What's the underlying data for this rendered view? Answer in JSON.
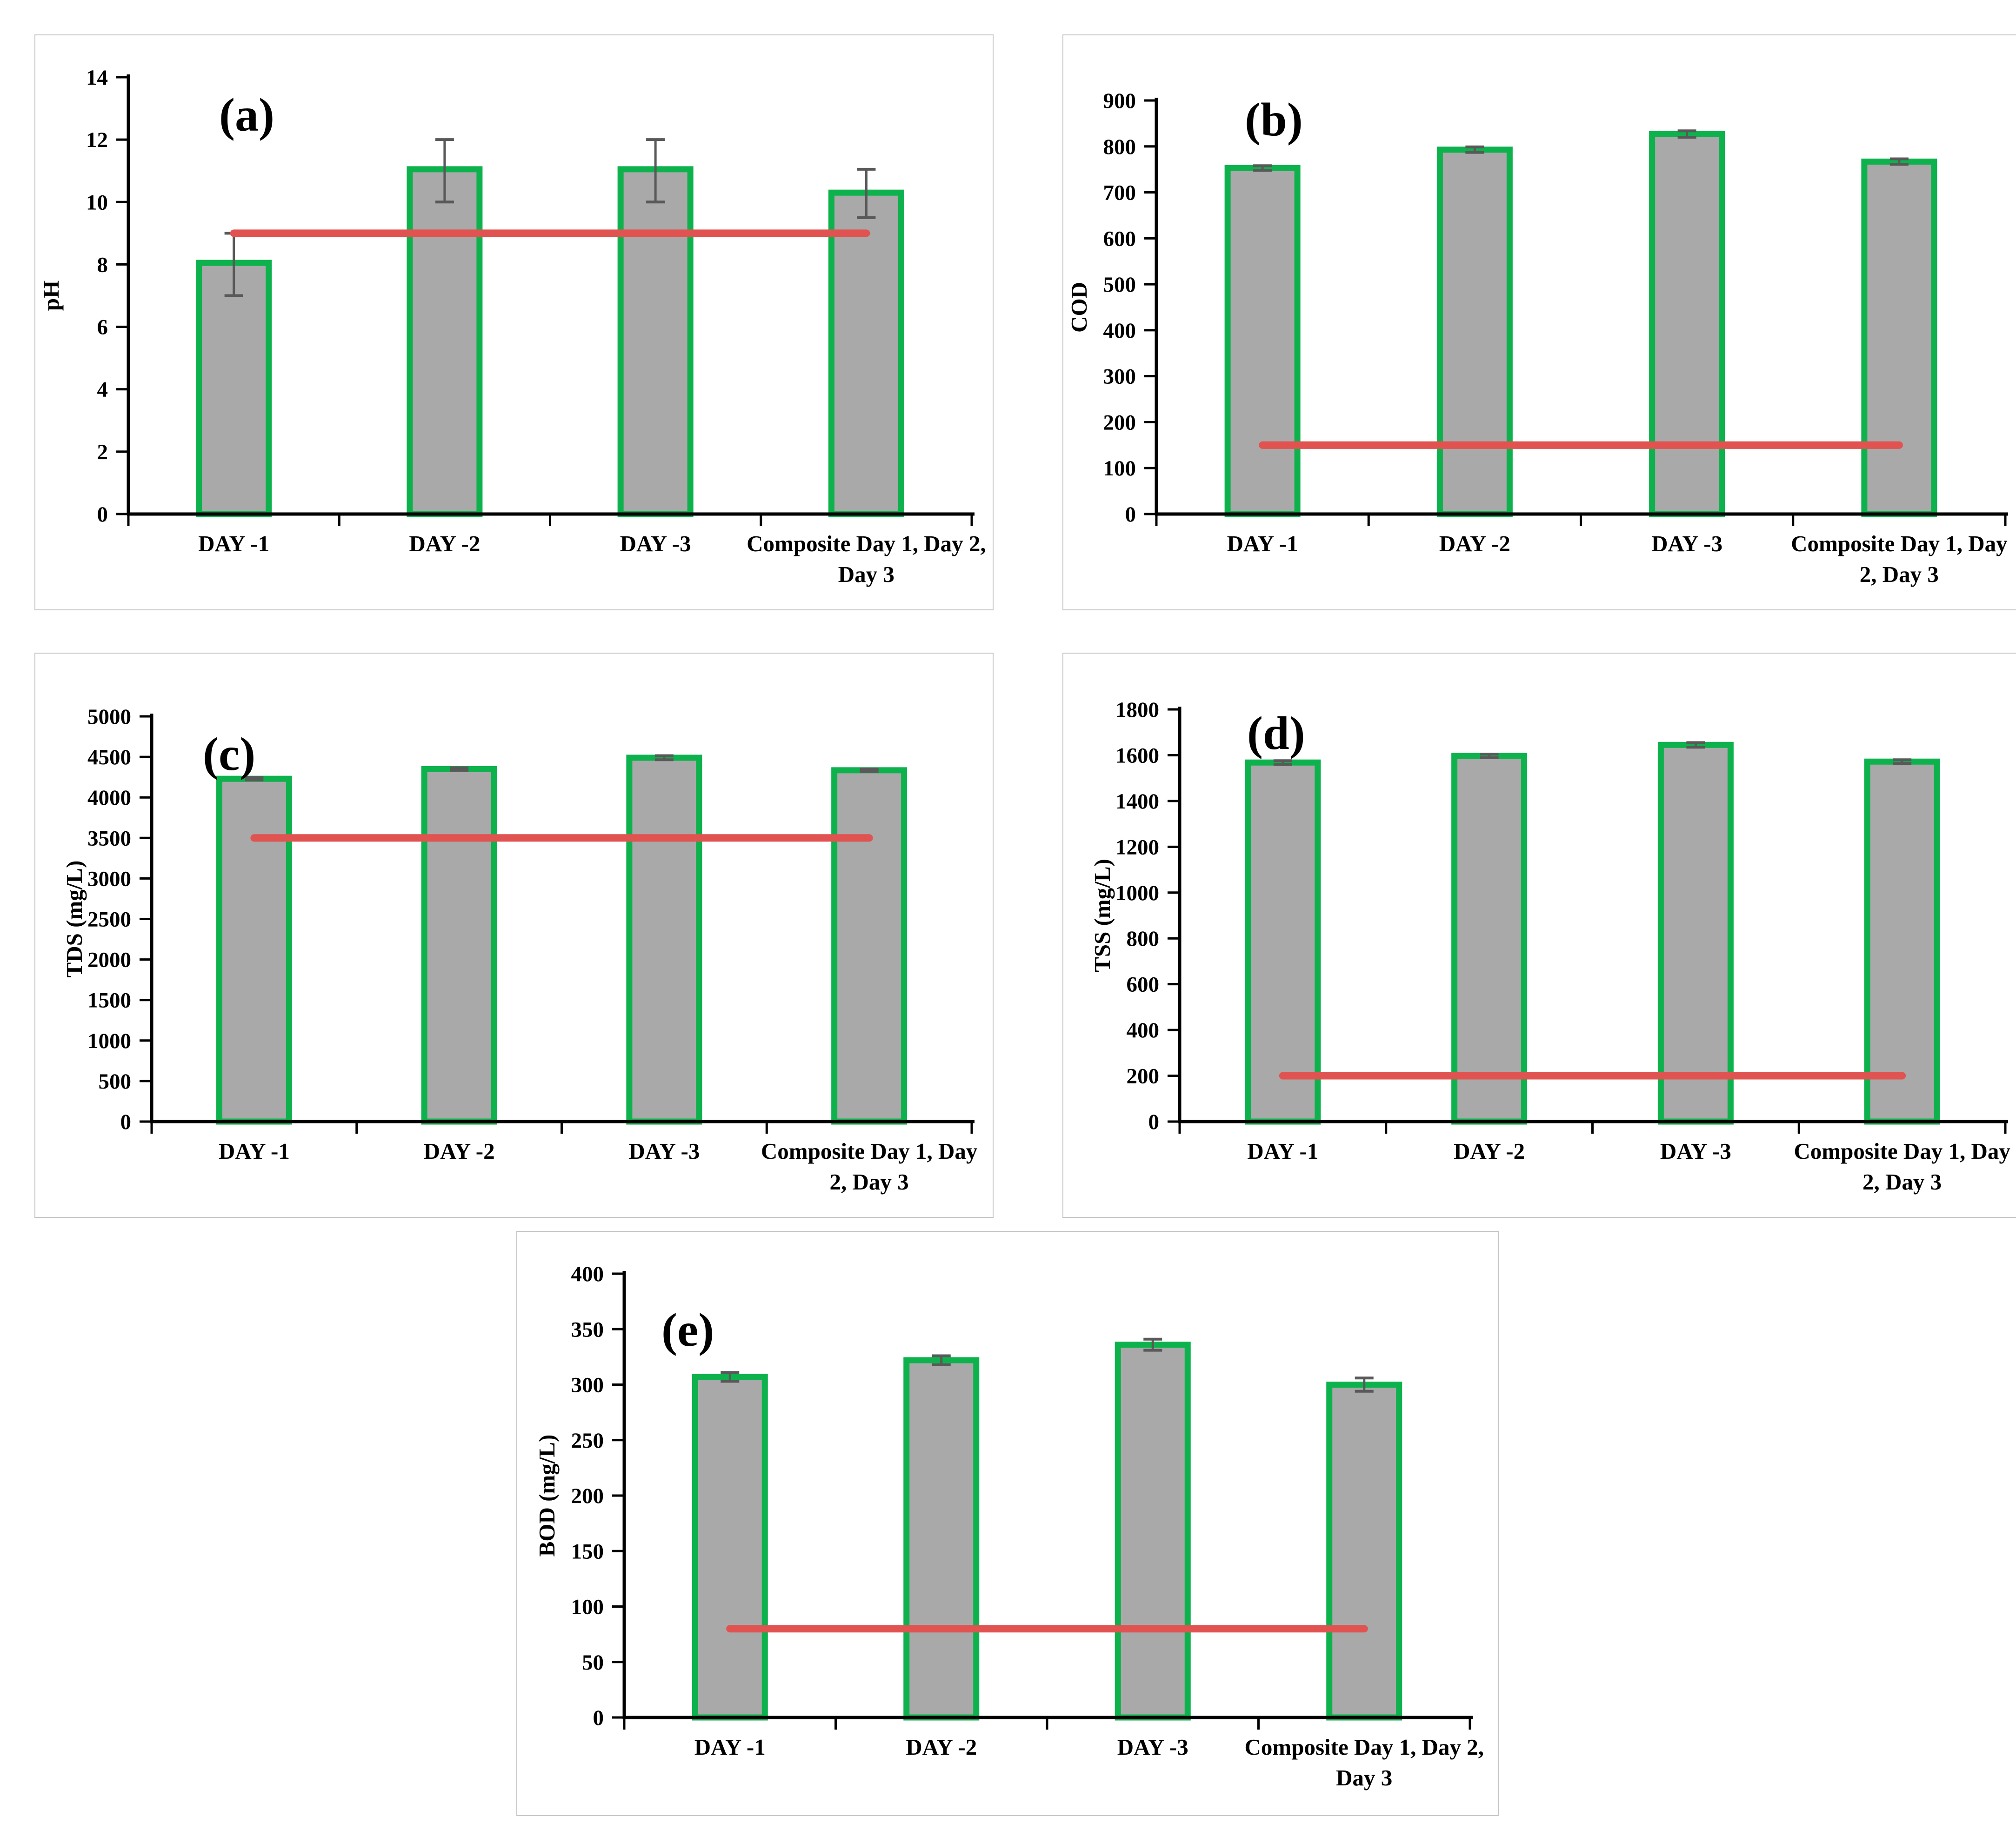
{
  "figure": {
    "description": "Five bar-chart panels (a)-(e) of wastewater quality parameters over sampling days with permissible-limit reference lines",
    "panels_order": [
      "a",
      "b",
      "c",
      "d",
      "e"
    ]
  },
  "colors": {
    "bar_fill": "#a9a9a9",
    "bar_border": "#0db24d",
    "error_bar": "#595959",
    "reference_line": "#e05350",
    "axis": "#000000",
    "panel_border": "#c6c6c6",
    "text": "#000000",
    "background": "#ffffff"
  },
  "chart_data": [
    {
      "id": "a",
      "type": "bar",
      "panel_letter": "(a)",
      "title": "",
      "xlabel": "",
      "ylabel": "pH",
      "ylim": [
        0,
        14
      ],
      "ystep": 2,
      "yticks": [
        0,
        2,
        4,
        6,
        8,
        10,
        12,
        14
      ],
      "grid": false,
      "legend": "none",
      "categories": [
        "DAY -1",
        "DAY -2",
        "DAY -3",
        "Composite Day 1, Day 2, Day 3"
      ],
      "category_lines": [
        [
          "DAY -1"
        ],
        [
          "DAY -2"
        ],
        [
          "DAY -3"
        ],
        [
          "Composite Day 1, Day 2,",
          "Day 3"
        ]
      ],
      "values": [
        8.05,
        11.05,
        11.05,
        10.3
      ],
      "err_plus": [
        0.95,
        0.95,
        0.95,
        0.75
      ],
      "err_minus": [
        1.05,
        1.05,
        1.05,
        0.8
      ],
      "ref_line_value": 9
    },
    {
      "id": "b",
      "type": "bar",
      "panel_letter": "(b)",
      "title": "",
      "xlabel": "",
      "ylabel": "COD",
      "ylim": [
        0,
        900
      ],
      "ystep": 100,
      "yticks": [
        0,
        100,
        200,
        300,
        400,
        500,
        600,
        700,
        800,
        900
      ],
      "grid": false,
      "legend": "none",
      "categories": [
        "DAY -1",
        "DAY -2",
        "DAY -3",
        "Composite Day 1, Day 2, Day 3"
      ],
      "category_lines": [
        [
          "DAY -1"
        ],
        [
          "DAY -2"
        ],
        [
          "DAY -3"
        ],
        [
          "Composite Day 1, Day",
          "2, Day 3"
        ]
      ],
      "values": [
        753,
        793,
        827,
        767
      ],
      "err_plus": [
        5,
        6,
        7,
        6
      ],
      "err_minus": [
        5,
        6,
        7,
        6
      ],
      "ref_line_value": 150
    },
    {
      "id": "c",
      "type": "bar",
      "panel_letter": "(c)",
      "title": "",
      "xlabel": "",
      "ylabel": "TDS (mg/L)",
      "ylim": [
        0,
        5000
      ],
      "ystep": 500,
      "yticks": [
        0,
        500,
        1000,
        1500,
        2000,
        2500,
        3000,
        3500,
        4000,
        4500,
        5000
      ],
      "grid": false,
      "legend": "none",
      "categories": [
        "DAY -1",
        "DAY -2",
        "DAY -3",
        "Composite Day 1, Day 2, Day 3"
      ],
      "category_lines": [
        [
          "DAY -1"
        ],
        [
          "DAY -2"
        ],
        [
          "DAY -3"
        ],
        [
          "Composite Day 1, Day",
          "2, Day 3"
        ]
      ],
      "values": [
        4230,
        4350,
        4490,
        4335
      ],
      "err_plus": [
        15,
        15,
        25,
        15
      ],
      "err_minus": [
        15,
        15,
        25,
        15
      ],
      "ref_line_value": 3500
    },
    {
      "id": "d",
      "type": "bar",
      "panel_letter": "(d)",
      "title": "",
      "xlabel": "",
      "ylabel": "TSS (mg/L)",
      "ylim": [
        0,
        1800
      ],
      "ystep": 200,
      "yticks": [
        0,
        200,
        400,
        600,
        800,
        1000,
        1200,
        1400,
        1600,
        1800
      ],
      "grid": false,
      "legend": "none",
      "categories": [
        "DAY -1",
        "DAY -2",
        "DAY -3",
        "Composite Day 1, Day 2, Day 3"
      ],
      "category_lines": [
        [
          "DAY -1"
        ],
        [
          "DAY -2"
        ],
        [
          "DAY -3"
        ],
        [
          "Composite Day 1, Day",
          "2, Day 3"
        ]
      ],
      "values": [
        1568,
        1597,
        1645,
        1572
      ],
      "err_plus": [
        8,
        8,
        10,
        8
      ],
      "err_minus": [
        8,
        8,
        10,
        8
      ],
      "ref_line_value": 200
    },
    {
      "id": "e",
      "type": "bar",
      "panel_letter": "(e)",
      "title": "",
      "xlabel": "",
      "ylabel": "BOD (mg/L)",
      "ylim": [
        0,
        400
      ],
      "ystep": 50,
      "yticks": [
        0,
        50,
        100,
        150,
        200,
        250,
        300,
        350,
        400
      ],
      "grid": false,
      "legend": "none",
      "categories": [
        "DAY -1",
        "DAY -2",
        "DAY -3",
        "Composite Day 1, Day 2, Day 3"
      ],
      "category_lines": [
        [
          "DAY -1"
        ],
        [
          "DAY -2"
        ],
        [
          "DAY -3"
        ],
        [
          "Composite Day 1, Day 2,",
          "Day 3"
        ]
      ],
      "values": [
        307,
        322,
        336,
        300
      ],
      "err_plus": [
        4,
        4,
        5,
        6
      ],
      "err_minus": [
        4,
        4,
        5,
        6
      ],
      "ref_line_value": 80
    }
  ]
}
